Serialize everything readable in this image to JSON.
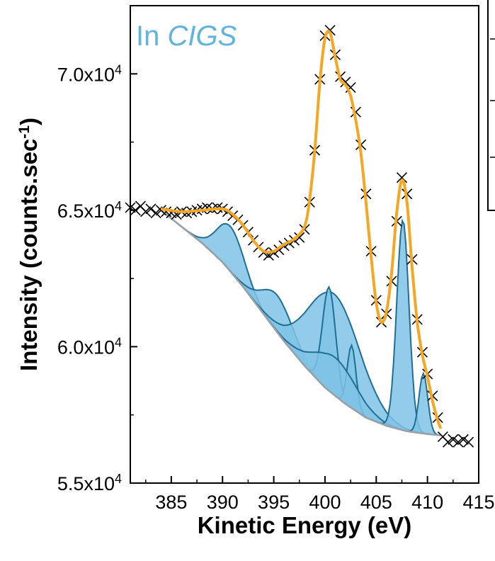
{
  "panel_label": {
    "prefix": "In ",
    "italic": "CIGS"
  },
  "chart_data": {
    "type": "scatter",
    "xlabel": "Kinetic Energy (eV)",
    "ylabel_main": "Intensity (counts.sec",
    "ylabel_sup": "-1",
    "ylabel_close": ")",
    "xlim": [
      381,
      415
    ],
    "ylim": [
      55000,
      72500
    ],
    "x_ticks": [
      385,
      390,
      395,
      400,
      405,
      410,
      415
    ],
    "x_tick_labels": [
      "385",
      "390",
      "395",
      "400",
      "405",
      "410",
      "415"
    ],
    "y_ticks": [
      55000,
      60000,
      65000,
      70000
    ],
    "y_tick_labels": [
      {
        "mant": "5.5x10",
        "exp": "4"
      },
      {
        "mant": "6.0x10",
        "exp": "4"
      },
      {
        "mant": "6.5x10",
        "exp": "4"
      },
      {
        "mant": "7.0x10",
        "exp": "4"
      }
    ],
    "colors": {
      "data": "#000000",
      "fit": "#f5a623",
      "component_fill": "#7fc3e6",
      "component_edge": "#1f6f94",
      "background": "#9aa0a6",
      "label": "#5fb3dc"
    },
    "series": [
      {
        "role": "measured",
        "marker": "x",
        "points": [
          [
            381.0,
            65100
          ],
          [
            381.5,
            65000
          ],
          [
            382.0,
            65150
          ],
          [
            382.5,
            64950
          ],
          [
            383.0,
            65050
          ],
          [
            383.5,
            64900
          ],
          [
            384.0,
            65000
          ],
          [
            384.5,
            64950
          ],
          [
            385.0,
            64900
          ],
          [
            385.5,
            64850
          ],
          [
            386.0,
            64950
          ],
          [
            386.5,
            64900
          ],
          [
            387.0,
            64950
          ],
          [
            387.5,
            65000
          ],
          [
            388.0,
            65050
          ],
          [
            388.5,
            65100
          ],
          [
            389.0,
            65050
          ],
          [
            389.5,
            65100
          ],
          [
            390.0,
            65050
          ],
          [
            390.5,
            64950
          ],
          [
            391.0,
            64800
          ],
          [
            391.5,
            64650
          ],
          [
            392.0,
            64450
          ],
          [
            392.5,
            64200
          ],
          [
            393.0,
            63900
          ],
          [
            393.5,
            63650
          ],
          [
            394.0,
            63450
          ],
          [
            394.5,
            63350
          ],
          [
            395.0,
            63450
          ],
          [
            395.5,
            63550
          ],
          [
            396.0,
            63700
          ],
          [
            396.5,
            63800
          ],
          [
            397.0,
            63900
          ],
          [
            397.5,
            64000
          ],
          [
            398.0,
            64300
          ],
          [
            398.5,
            65300
          ],
          [
            399.0,
            67200
          ],
          [
            399.5,
            69800
          ],
          [
            400.0,
            71400
          ],
          [
            400.5,
            71600
          ],
          [
            401.0,
            70700
          ],
          [
            401.5,
            69900
          ],
          [
            402.0,
            69700
          ],
          [
            402.5,
            69500
          ],
          [
            403.0,
            68600
          ],
          [
            403.5,
            67400
          ],
          [
            404.0,
            65600
          ],
          [
            404.5,
            63500
          ],
          [
            405.0,
            61700
          ],
          [
            405.5,
            60900
          ],
          [
            406.0,
            61200
          ],
          [
            406.5,
            62400
          ],
          [
            407.0,
            64600
          ],
          [
            407.5,
            66200
          ],
          [
            408.0,
            65600
          ],
          [
            408.5,
            63200
          ],
          [
            409.0,
            61000
          ],
          [
            409.5,
            59800
          ],
          [
            410.0,
            59000
          ],
          [
            410.5,
            58200
          ],
          [
            411.0,
            57400
          ],
          [
            411.5,
            56700
          ],
          [
            412.0,
            56500
          ],
          [
            412.5,
            56600
          ],
          [
            413.0,
            56500
          ],
          [
            413.5,
            56600
          ],
          [
            414.0,
            56500
          ]
        ]
      },
      {
        "role": "envelope",
        "points": [
          [
            384.0,
            65050
          ],
          [
            386.0,
            64950
          ],
          [
            388.0,
            65000
          ],
          [
            390.0,
            65050
          ],
          [
            391.0,
            64850
          ],
          [
            392.0,
            64450
          ],
          [
            393.0,
            63900
          ],
          [
            394.0,
            63500
          ],
          [
            395.0,
            63500
          ],
          [
            396.0,
            63750
          ],
          [
            397.0,
            63950
          ],
          [
            398.0,
            64400
          ],
          [
            398.5,
            65400
          ],
          [
            399.0,
            67200
          ],
          [
            399.5,
            69700
          ],
          [
            400.0,
            71300
          ],
          [
            400.5,
            71500
          ],
          [
            401.0,
            70600
          ],
          [
            401.5,
            69800
          ],
          [
            402.0,
            69600
          ],
          [
            402.5,
            69200
          ],
          [
            403.0,
            68300
          ],
          [
            403.5,
            67100
          ],
          [
            404.0,
            65300
          ],
          [
            404.5,
            63300
          ],
          [
            405.0,
            61600
          ],
          [
            405.5,
            60900
          ],
          [
            406.0,
            61300
          ],
          [
            406.5,
            62700
          ],
          [
            407.0,
            64900
          ],
          [
            407.5,
            66100
          ],
          [
            408.0,
            65300
          ],
          [
            408.5,
            62900
          ],
          [
            409.0,
            60900
          ],
          [
            409.5,
            59700
          ],
          [
            410.0,
            58900
          ],
          [
            410.5,
            58000
          ],
          [
            411.0,
            57300
          ],
          [
            411.3,
            57000
          ]
        ]
      }
    ],
    "background": [
      [
        384.0,
        65000
      ],
      [
        386.0,
        64400
      ],
      [
        388.0,
        63800
      ],
      [
        390.0,
        63100
      ],
      [
        392.0,
        62200
      ],
      [
        394.0,
        61200
      ],
      [
        396.0,
        60200
      ],
      [
        398.0,
        59300
      ],
      [
        400.0,
        58500
      ],
      [
        402.0,
        57900
      ],
      [
        404.0,
        57400
      ],
      [
        406.0,
        57100
      ],
      [
        408.0,
        56900
      ],
      [
        410.0,
        56800
      ],
      [
        411.3,
        56750
      ]
    ],
    "components": [
      {
        "center": 390.8,
        "height": 1650,
        "fwhm": 3.2
      },
      {
        "center": 395.4,
        "height": 1350,
        "fwhm": 3.6
      },
      {
        "center": 400.9,
        "height": 3700,
        "fwhm": 6.0
      },
      {
        "center": 400.4,
        "height": 3800,
        "fwhm": 1.5
      },
      {
        "center": 402.6,
        "height": 2300,
        "fwhm": 1.0
      },
      {
        "center": 401.0,
        "height": 1400,
        "fwhm": 5.0
      },
      {
        "center": 407.6,
        "height": 7700,
        "fwhm": 1.4
      },
      {
        "center": 409.6,
        "height": 2200,
        "fwhm": 1.0
      }
    ]
  }
}
